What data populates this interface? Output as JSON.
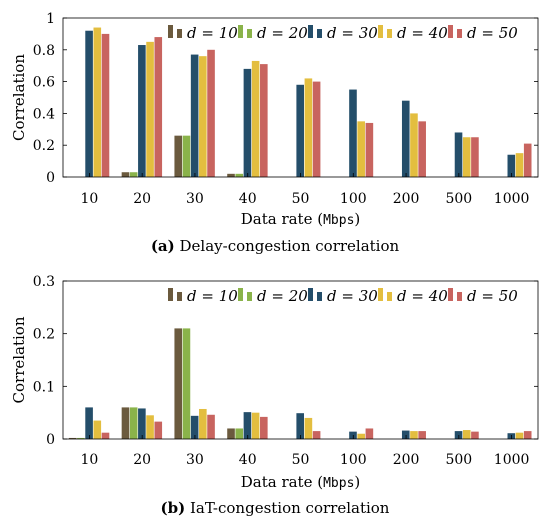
{
  "chart_data": [
    {
      "type": "bar",
      "caption_tag": "(a)",
      "caption_text": "Delay-congestion correlation",
      "xlabel_prefix": "Data rate (",
      "xlabel_unit": "Mbps",
      "xlabel_suffix": ")",
      "ylabel": "Correlation",
      "ylim": [
        0,
        1
      ],
      "yticks": [
        "0",
        "0.2",
        "0.4",
        "0.6",
        "0.8",
        "1"
      ],
      "categories": [
        "10",
        "20",
        "30",
        "40",
        "50",
        "100",
        "200",
        "500",
        "1000"
      ],
      "legend_placement": "top-right",
      "series": [
        {
          "name": "d = 10",
          "color": "#6b5a3e",
          "values": [
            0,
            0.03,
            0.26,
            0.02,
            0,
            0,
            0,
            0,
            0
          ]
        },
        {
          "name": "d = 20",
          "color": "#8ab34a",
          "values": [
            0,
            0.03,
            0.26,
            0.02,
            0,
            0,
            0,
            0,
            0
          ]
        },
        {
          "name": "d = 30",
          "color": "#244e6a",
          "values": [
            0.92,
            0.83,
            0.77,
            0.68,
            0.58,
            0.55,
            0.48,
            0.28,
            0.14
          ]
        },
        {
          "name": "d = 40",
          "color": "#e3be3f",
          "values": [
            0.94,
            0.85,
            0.76,
            0.73,
            0.62,
            0.35,
            0.4,
            0.25,
            0.15
          ]
        },
        {
          "name": "d = 50",
          "color": "#c8645f",
          "values": [
            0.9,
            0.88,
            0.8,
            0.71,
            0.6,
            0.34,
            0.35,
            0.25,
            0.21
          ]
        }
      ]
    },
    {
      "type": "bar",
      "caption_tag": "(b)",
      "caption_text": "IaT-congestion correlation",
      "xlabel_prefix": "Data rate (",
      "xlabel_unit": "Mbps",
      "xlabel_suffix": ")",
      "ylabel": "Correlation",
      "ylim": [
        0,
        0.3
      ],
      "yticks": [
        "0",
        "0.1",
        "0.2",
        "0.3"
      ],
      "categories": [
        "10",
        "20",
        "30",
        "40",
        "50",
        "100",
        "200",
        "500",
        "1000"
      ],
      "legend_placement": "top-right",
      "series": [
        {
          "name": "d = 10",
          "color": "#6b5a3e",
          "values": [
            0.002,
            0.06,
            0.21,
            0.02,
            0,
            0,
            0,
            0,
            0
          ]
        },
        {
          "name": "d = 20",
          "color": "#8ab34a",
          "values": [
            0.002,
            0.06,
            0.21,
            0.02,
            0,
            0,
            0,
            0,
            0
          ]
        },
        {
          "name": "d = 30",
          "color": "#244e6a",
          "values": [
            0.06,
            0.058,
            0.044,
            0.051,
            0.049,
            0.014,
            0.016,
            0.015,
            0.011
          ]
        },
        {
          "name": "d = 40",
          "color": "#e3be3f",
          "values": [
            0.035,
            0.045,
            0.057,
            0.05,
            0.04,
            0.01,
            0.015,
            0.017,
            0.012
          ]
        },
        {
          "name": "d = 50",
          "color": "#c8645f",
          "values": [
            0.012,
            0.033,
            0.046,
            0.042,
            0.015,
            0.02,
            0.015,
            0.014,
            0.015
          ]
        }
      ]
    }
  ]
}
